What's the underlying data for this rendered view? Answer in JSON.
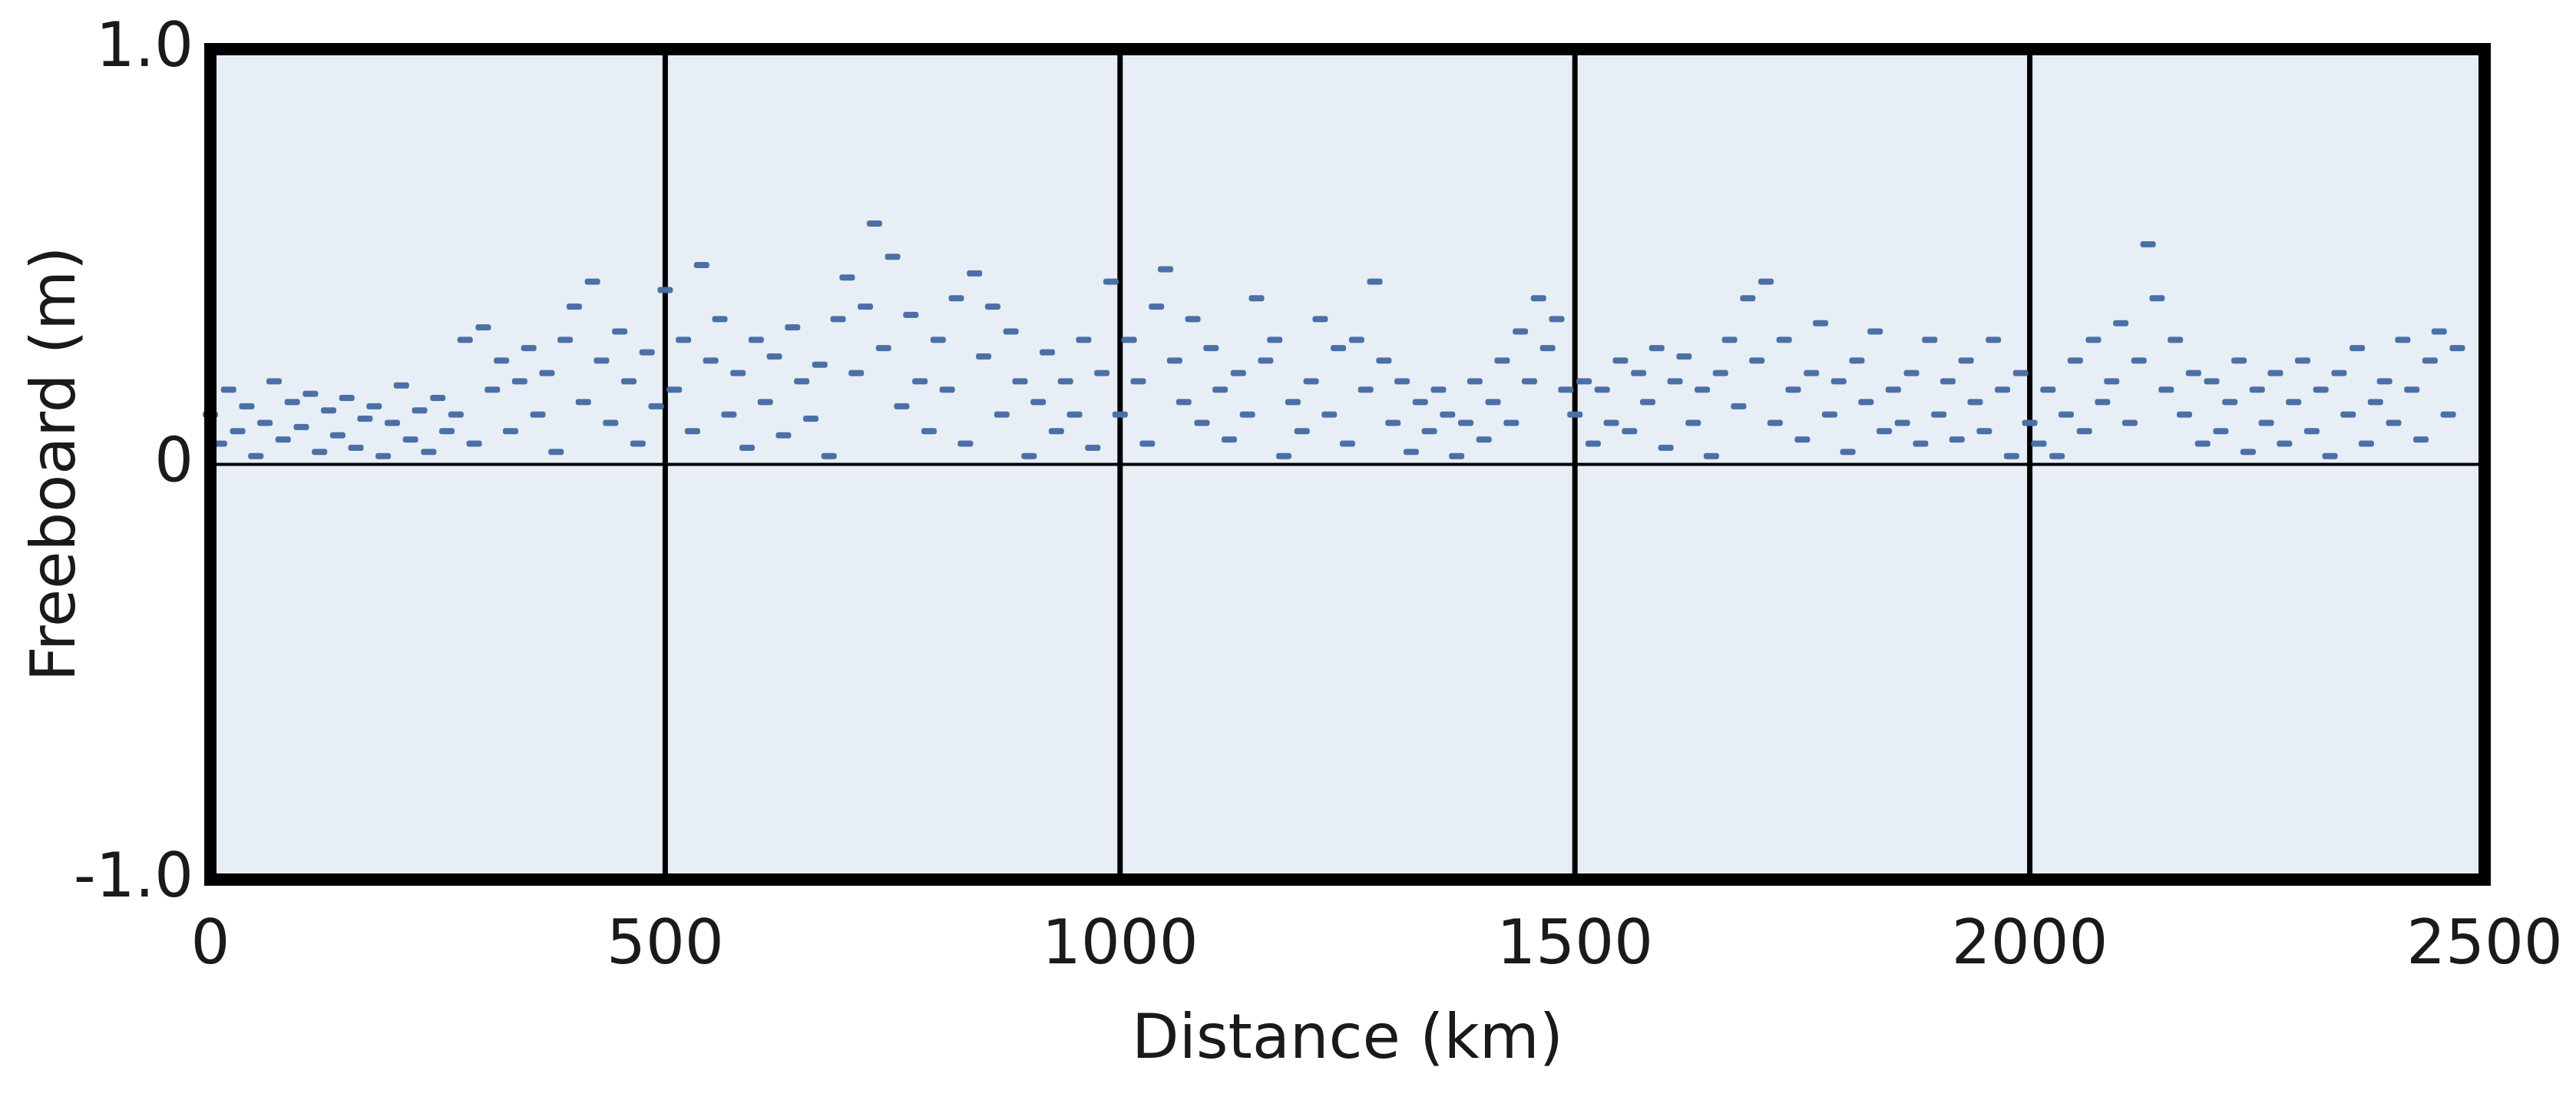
{
  "chart_data": {
    "type": "scatter",
    "xlabel": "Distance (km)",
    "ylabel": "Freeboard (m)",
    "xlim": [
      0,
      2500
    ],
    "ylim": [
      -1,
      1
    ],
    "xticks": [
      0,
      500,
      1000,
      1500,
      2000,
      2500
    ],
    "yticks": [
      {
        "value": 1,
        "label": "1.0"
      },
      0,
      {
        "value": -1,
        "label": "-1.0"
      }
    ],
    "grid": "x",
    "color": "#4a70a6",
    "x": [
      0,
      10,
      20,
      30,
      40,
      50,
      60,
      70,
      80,
      90,
      100,
      110,
      120,
      130,
      140,
      150,
      160,
      170,
      180,
      190,
      200,
      210,
      220,
      230,
      240,
      250,
      260,
      270,
      280,
      290,
      300,
      310,
      320,
      330,
      340,
      350,
      360,
      370,
      380,
      390,
      400,
      410,
      420,
      430,
      440,
      450,
      460,
      470,
      480,
      490,
      500,
      510,
      520,
      530,
      540,
      550,
      560,
      570,
      580,
      590,
      600,
      610,
      620,
      630,
      640,
      650,
      660,
      670,
      680,
      690,
      700,
      710,
      720,
      730,
      740,
      750,
      760,
      770,
      780,
      790,
      800,
      810,
      820,
      830,
      840,
      850,
      860,
      870,
      880,
      890,
      900,
      910,
      920,
      930,
      940,
      950,
      960,
      970,
      980,
      990,
      1000,
      1010,
      1020,
      1030,
      1040,
      1050,
      1060,
      1070,
      1080,
      1090,
      1100,
      1110,
      1120,
      1130,
      1140,
      1150,
      1160,
      1170,
      1180,
      1190,
      1200,
      1210,
      1220,
      1230,
      1240,
      1250,
      1260,
      1270,
      1280,
      1290,
      1300,
      1310,
      1320,
      1330,
      1340,
      1350,
      1360,
      1370,
      1380,
      1390,
      1400,
      1410,
      1420,
      1430,
      1440,
      1450,
      1460,
      1470,
      1480,
      1490,
      1500,
      1510,
      1520,
      1530,
      1540,
      1550,
      1560,
      1570,
      1580,
      1590,
      1600,
      1610,
      1620,
      1630,
      1640,
      1650,
      1660,
      1670,
      1680,
      1690,
      1700,
      1710,
      1720,
      1730,
      1740,
      1750,
      1760,
      1770,
      1780,
      1790,
      1800,
      1810,
      1820,
      1830,
      1840,
      1850,
      1860,
      1870,
      1880,
      1890,
      1900,
      1910,
      1920,
      1930,
      1940,
      1950,
      1960,
      1970,
      1980,
      1990,
      2000,
      2010,
      2020,
      2030,
      2040,
      2050,
      2060,
      2070,
      2080,
      2090,
      2100,
      2110,
      2120,
      2130,
      2140,
      2150,
      2160,
      2170,
      2180,
      2190,
      2200,
      2210,
      2220,
      2230,
      2240,
      2250,
      2260,
      2270,
      2280,
      2290,
      2300,
      2310,
      2320,
      2330,
      2340,
      2350,
      2360,
      2370,
      2380,
      2390,
      2400,
      2410,
      2420,
      2430,
      2440,
      2450,
      2460,
      2470
    ],
    "values": [
      0.12,
      0.05,
      0.18,
      0.08,
      0.14,
      0.02,
      0.1,
      0.2,
      0.06,
      0.15,
      0.09,
      0.17,
      0.03,
      0.13,
      0.07,
      0.16,
      0.04,
      0.11,
      0.14,
      0.02,
      0.1,
      0.19,
      0.06,
      0.13,
      0.03,
      0.16,
      0.08,
      0.12,
      0.3,
      0.05,
      0.33,
      0.18,
      0.25,
      0.08,
      0.2,
      0.28,
      0.12,
      0.22,
      0.03,
      0.3,
      0.38,
      0.15,
      0.44,
      0.25,
      0.1,
      0.32,
      0.2,
      0.05,
      0.27,
      0.14,
      0.42,
      0.18,
      0.3,
      0.08,
      0.48,
      0.25,
      0.35,
      0.12,
      0.22,
      0.04,
      0.3,
      0.15,
      0.26,
      0.07,
      0.33,
      0.2,
      0.11,
      0.24,
      0.02,
      0.35,
      0.45,
      0.22,
      0.38,
      0.58,
      0.28,
      0.5,
      0.14,
      0.36,
      0.2,
      0.08,
      0.3,
      0.18,
      0.4,
      0.05,
      0.46,
      0.26,
      0.38,
      0.12,
      0.32,
      0.2,
      0.02,
      0.15,
      0.27,
      0.08,
      0.2,
      0.12,
      0.3,
      0.04,
      0.22,
      0.44,
      0.12,
      0.3,
      0.2,
      0.05,
      0.38,
      0.47,
      0.25,
      0.15,
      0.35,
      0.1,
      0.28,
      0.18,
      0.06,
      0.22,
      0.12,
      0.4,
      0.25,
      0.3,
      0.02,
      0.15,
      0.08,
      0.2,
      0.35,
      0.12,
      0.28,
      0.05,
      0.3,
      0.18,
      0.44,
      0.25,
      0.1,
      0.2,
      0.03,
      0.15,
      0.08,
      0.18,
      0.12,
      0.02,
      0.1,
      0.2,
      0.06,
      0.15,
      0.25,
      0.1,
      0.32,
      0.2,
      0.4,
      0.28,
      0.35,
      0.18,
      0.12,
      0.2,
      0.05,
      0.18,
      0.1,
      0.25,
      0.08,
      0.22,
      0.15,
      0.28,
      0.04,
      0.2,
      0.26,
      0.1,
      0.18,
      0.02,
      0.22,
      0.3,
      0.14,
      0.4,
      0.25,
      0.44,
      0.1,
      0.3,
      0.18,
      0.06,
      0.22,
      0.34,
      0.12,
      0.2,
      0.03,
      0.25,
      0.15,
      0.32,
      0.08,
      0.18,
      0.1,
      0.22,
      0.05,
      0.3,
      0.12,
      0.2,
      0.06,
      0.25,
      0.15,
      0.08,
      0.3,
      0.18,
      0.02,
      0.22,
      0.1,
      0.05,
      0.18,
      0.02,
      0.12,
      0.25,
      0.08,
      0.3,
      0.15,
      0.2,
      0.34,
      0.1,
      0.25,
      0.53,
      0.4,
      0.18,
      0.3,
      0.12,
      0.22,
      0.05,
      0.2,
      0.08,
      0.15,
      0.25,
      0.03,
      0.18,
      0.1,
      0.22,
      0.05,
      0.15,
      0.25,
      0.08,
      0.18,
      0.02,
      0.22,
      0.12,
      0.28,
      0.05,
      0.15,
      0.2,
      0.1,
      0.3,
      0.18,
      0.06,
      0.25,
      0.32,
      0.12,
      0.28
    ]
  }
}
